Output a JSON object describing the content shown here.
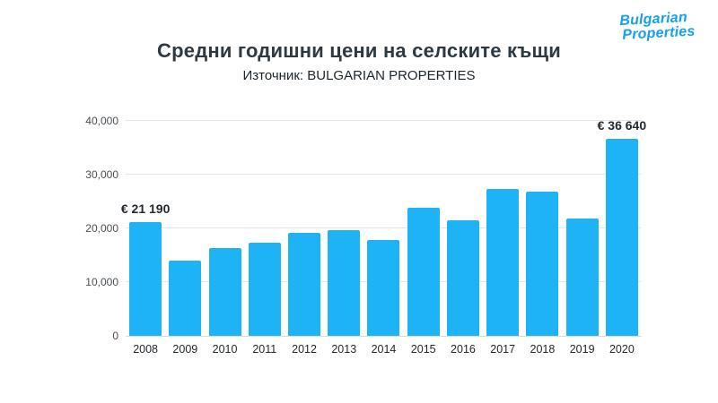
{
  "logo": {
    "line1": "Bulgarian",
    "line2": "Properties",
    "color": "#169ff2"
  },
  "header": {
    "title": "Средни годишни цени на селските къщи",
    "subtitle": "Източник: BULGARIAN PROPERTIES"
  },
  "chart_data": {
    "type": "bar",
    "title": "Средни годишни цени на селските къщи",
    "subtitle": "Източник: BULGARIAN PROPERTIES",
    "categories": [
      "2008",
      "2009",
      "2010",
      "2011",
      "2012",
      "2013",
      "2014",
      "2015",
      "2016",
      "2017",
      "2018",
      "2019",
      "2020"
    ],
    "values": [
      21190,
      14000,
      16300,
      17400,
      19200,
      19600,
      17900,
      23900,
      21500,
      27300,
      26900,
      21900,
      36640
    ],
    "xlabel": "",
    "ylabel": "",
    "ylim": [
      0,
      40000
    ],
    "yticks": [
      0,
      10000,
      20000,
      30000,
      40000
    ],
    "ytick_labels": [
      "0",
      "10,000",
      "20,000",
      "30,000",
      "40,000"
    ],
    "bar_color": "#1db3f4",
    "grid": true,
    "legend": false,
    "annotations": [
      {
        "index": 0,
        "text": "€ 21 190"
      },
      {
        "index": 12,
        "text": "€ 36 640"
      }
    ]
  }
}
